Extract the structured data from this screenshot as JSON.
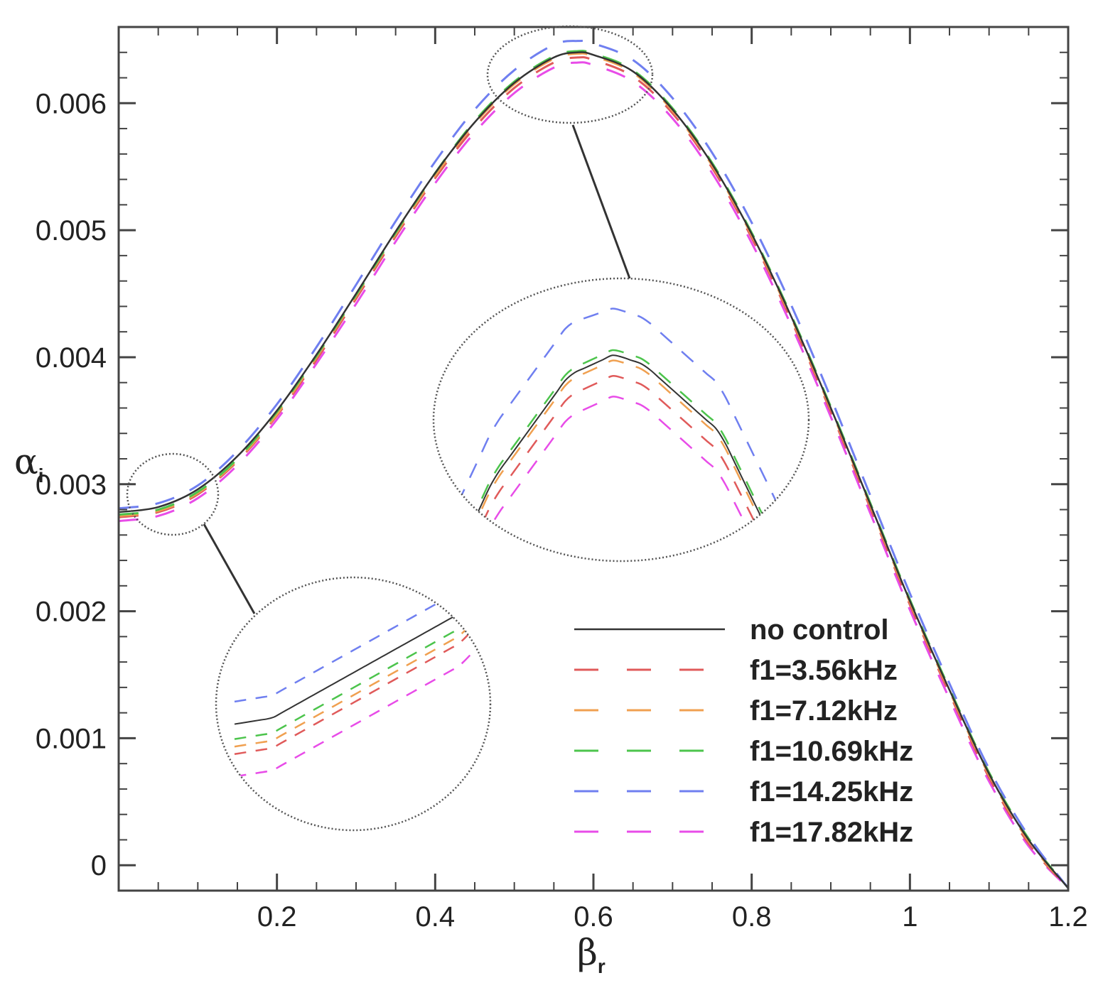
{
  "chart_data": {
    "type": "line",
    "title": "",
    "xlabel": {
      "symbol": "β",
      "subscript": "r"
    },
    "ylabel": {
      "symbol": "α",
      "subscript": "i"
    },
    "xlim": [
      0.0,
      1.2
    ],
    "ylim": [
      -0.0002,
      0.0066
    ],
    "x_ticks": [
      {
        "value": 0.2,
        "label": "0.2"
      },
      {
        "value": 0.4,
        "label": "0.4"
      },
      {
        "value": 0.6,
        "label": "0.6"
      },
      {
        "value": 0.8,
        "label": "0.8"
      },
      {
        "value": 1.0,
        "label": "1"
      },
      {
        "value": 1.2,
        "label": "1.2"
      }
    ],
    "y_ticks": [
      {
        "value": 0.0,
        "label": "0"
      },
      {
        "value": 0.001,
        "label": "0.001"
      },
      {
        "value": 0.002,
        "label": "0.002"
      },
      {
        "value": 0.003,
        "label": "0.003"
      },
      {
        "value": 0.004,
        "label": "0.004"
      },
      {
        "value": 0.005,
        "label": "0.005"
      },
      {
        "value": 0.006,
        "label": "0.006"
      }
    ],
    "grid": false,
    "legend_position": "bottom-right",
    "x": [
      0.0,
      0.05,
      0.1,
      0.15,
      0.2,
      0.25,
      0.3,
      0.35,
      0.4,
      0.45,
      0.5,
      0.55,
      0.58,
      0.6,
      0.65,
      0.7,
      0.75,
      0.8,
      0.85,
      0.9,
      0.95,
      1.0,
      1.05,
      1.1,
      1.15,
      1.2
    ],
    "series": [
      {
        "name": "no control",
        "color": "#333333",
        "dash": "solid",
        "values": [
          0.00278,
          0.00282,
          0.00296,
          0.00322,
          0.00358,
          0.00402,
          0.0045,
          0.00499,
          0.00545,
          0.00585,
          0.00616,
          0.00636,
          0.0064,
          0.00638,
          0.00625,
          0.00595,
          0.00552,
          0.00497,
          0.00432,
          0.0036,
          0.00284,
          0.00208,
          0.00138,
          0.00072,
          0.0002,
          -0.00018
        ]
      },
      {
        "name": "f1=3.56kHz",
        "color": "#e05a5a",
        "dash": "long",
        "values": [
          0.00274,
          0.00278,
          0.00292,
          0.00318,
          0.00354,
          0.00398,
          0.00446,
          0.00495,
          0.00541,
          0.00581,
          0.00612,
          0.00632,
          0.00636,
          0.00634,
          0.00621,
          0.00592,
          0.00549,
          0.00494,
          0.00429,
          0.00357,
          0.00281,
          0.00205,
          0.00135,
          0.00069,
          0.00017,
          -0.00018
        ]
      },
      {
        "name": "f1=7.12kHz",
        "color": "#f0a050",
        "dash": "long",
        "values": [
          0.00275,
          0.00279,
          0.00293,
          0.00319,
          0.00355,
          0.004,
          0.00448,
          0.00497,
          0.00543,
          0.00584,
          0.00615,
          0.00635,
          0.00639,
          0.00637,
          0.00624,
          0.00594,
          0.00551,
          0.00496,
          0.00431,
          0.00359,
          0.00283,
          0.00207,
          0.00137,
          0.00071,
          0.00019,
          -0.00018
        ]
      },
      {
        "name": "f1=10.69kHz",
        "color": "#4cc44c",
        "dash": "long",
        "values": [
          0.00276,
          0.0028,
          0.00294,
          0.0032,
          0.00357,
          0.00401,
          0.00449,
          0.00498,
          0.00545,
          0.00586,
          0.00617,
          0.00637,
          0.00641,
          0.00639,
          0.00626,
          0.00596,
          0.00553,
          0.00498,
          0.00433,
          0.00361,
          0.00285,
          0.00209,
          0.00139,
          0.00073,
          0.00021,
          -0.00018
        ]
      },
      {
        "name": "f1=14.25kHz",
        "color": "#6f7ff0",
        "dash": "long",
        "values": [
          0.00281,
          0.00285,
          0.00299,
          0.00326,
          0.00363,
          0.00408,
          0.00457,
          0.00507,
          0.00554,
          0.00595,
          0.00626,
          0.00646,
          0.00649,
          0.00647,
          0.00634,
          0.00604,
          0.00561,
          0.00506,
          0.00441,
          0.00368,
          0.00291,
          0.00214,
          0.00143,
          0.00076,
          0.00023,
          -0.00018
        ]
      },
      {
        "name": "f1=17.82kHz",
        "color": "#e84ce8",
        "dash": "long",
        "values": [
          0.00271,
          0.00275,
          0.00289,
          0.00315,
          0.00351,
          0.00395,
          0.00442,
          0.00491,
          0.00537,
          0.00577,
          0.00608,
          0.00628,
          0.00632,
          0.0063,
          0.00617,
          0.00588,
          0.00545,
          0.0049,
          0.00425,
          0.00353,
          0.00277,
          0.00201,
          0.00131,
          0.00066,
          0.00015,
          -0.00018
        ]
      }
    ],
    "annotations": [
      {
        "type": "zoom-inset",
        "region_x": [
          0.0,
          0.13
        ],
        "region_y": [
          0.0026,
          0.0031
        ]
      },
      {
        "type": "zoom-inset",
        "region_x": [
          0.47,
          0.68
        ],
        "region_y": [
          0.0058,
          0.0066
        ]
      }
    ]
  }
}
